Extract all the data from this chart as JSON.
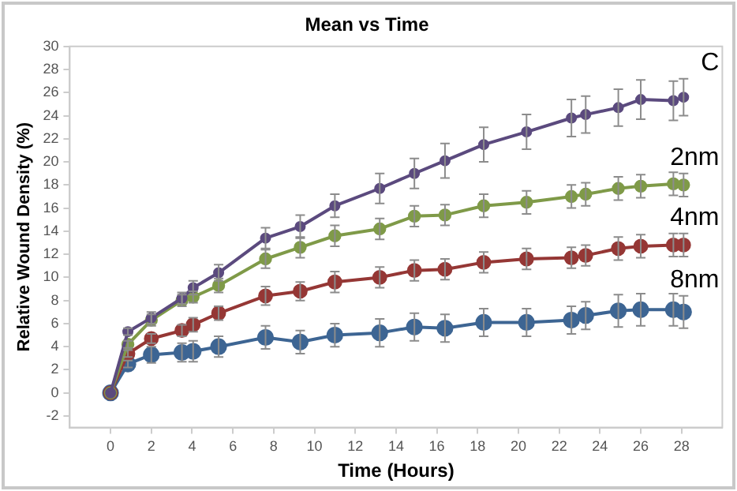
{
  "chart_data": {
    "type": "line",
    "title": "Mean vs Time",
    "xlabel": "Time (Hours)",
    "ylabel": "Relative Wound Density (%)",
    "x": [
      0,
      0.85,
      2,
      3.5,
      4.05,
      5.3,
      7.6,
      9.3,
      11,
      13.2,
      14.9,
      16.4,
      18.3,
      20.4,
      22.6,
      23.3,
      24.9,
      26,
      27.6,
      28.1
    ],
    "series": [
      {
        "name": "C",
        "color": "#5b4a7e",
        "values": [
          0,
          5.3,
          6.5,
          8.2,
          9.1,
          10.4,
          13.4,
          14.4,
          16.2,
          17.7,
          19.0,
          20.1,
          21.5,
          22.6,
          23.8,
          24.1,
          24.7,
          25.4,
          25.3,
          25.6
        ],
        "errors": [
          null,
          0.3,
          0.5,
          0.5,
          0.6,
          0.7,
          0.9,
          1.0,
          1.0,
          1.3,
          1.3,
          1.5,
          1.5,
          1.5,
          1.6,
          1.6,
          1.6,
          1.7,
          1.7,
          1.6
        ]
      },
      {
        "name": "2nm",
        "color": "#7f9a48",
        "values": [
          0,
          4.2,
          6.3,
          8.0,
          8.3,
          9.3,
          11.6,
          12.6,
          13.6,
          14.2,
          15.3,
          15.4,
          16.2,
          16.5,
          17.0,
          17.2,
          17.7,
          17.9,
          18.1,
          18.0
        ],
        "errors": [
          null,
          0.3,
          0.5,
          0.5,
          0.5,
          0.6,
          0.8,
          0.9,
          0.9,
          0.9,
          0.9,
          0.9,
          1.0,
          1.0,
          1.0,
          1.0,
          1.0,
          1.0,
          1.0,
          1.0
        ]
      },
      {
        "name": "4nm",
        "color": "#953735",
        "values": [
          0,
          3.4,
          4.7,
          5.4,
          5.9,
          6.9,
          8.4,
          8.8,
          9.6,
          10.0,
          10.6,
          10.7,
          11.3,
          11.6,
          11.7,
          11.9,
          12.5,
          12.7,
          12.8,
          12.8
        ],
        "errors": [
          null,
          0.3,
          0.4,
          0.5,
          0.6,
          0.6,
          0.8,
          0.8,
          0.9,
          0.9,
          0.9,
          0.9,
          0.9,
          0.9,
          0.9,
          0.9,
          1.0,
          1.0,
          1.0,
          1.0
        ]
      },
      {
        "name": "8nm",
        "color": "#3d6593",
        "values": [
          0,
          2.5,
          3.3,
          3.5,
          3.6,
          4.0,
          4.8,
          4.4,
          5.0,
          5.2,
          5.7,
          5.6,
          6.1,
          6.1,
          6.3,
          6.7,
          7.1,
          7.2,
          7.2,
          7.0
        ],
        "errors": [
          null,
          0.3,
          0.7,
          0.8,
          0.9,
          0.9,
          1.0,
          1.0,
          1.0,
          1.2,
          1.2,
          1.2,
          1.2,
          1.2,
          1.2,
          1.2,
          1.4,
          1.4,
          1.4,
          1.4
        ]
      }
    ],
    "xlim": [
      -2,
      30
    ],
    "xticks": [
      0,
      2,
      4,
      6,
      8,
      10,
      12,
      14,
      16,
      18,
      20,
      22,
      24,
      26,
      28
    ],
    "ylim": [
      -3,
      30
    ],
    "yticks": [
      -2,
      0,
      2,
      4,
      6,
      8,
      10,
      12,
      14,
      16,
      18,
      20,
      22,
      24,
      26,
      28,
      30
    ],
    "grid": false,
    "legend": false,
    "marker": "circle",
    "line_style": "solid"
  }
}
